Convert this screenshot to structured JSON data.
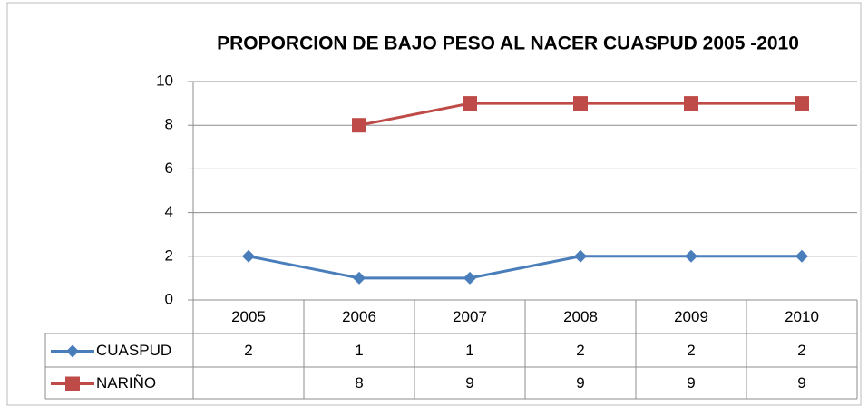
{
  "chart_data": {
    "type": "line",
    "title": "PROPORCION DE BAJO PESO AL NACER CUASPUD 2005 -2010",
    "categories": [
      "2005",
      "2006",
      "2007",
      "2008",
      "2009",
      "2010"
    ],
    "series": [
      {
        "name": "CUASPUD",
        "color": "#4a7ebb",
        "marker": "diamond",
        "values": [
          2,
          1,
          1,
          2,
          2,
          2
        ]
      },
      {
        "name": "NARIÑO",
        "color": "#be4b48",
        "marker": "square",
        "values": [
          null,
          8,
          9,
          9,
          9,
          9
        ]
      }
    ],
    "ylim": [
      0,
      10
    ],
    "yticks": [
      0,
      2,
      4,
      6,
      8,
      10
    ],
    "grid": true
  }
}
